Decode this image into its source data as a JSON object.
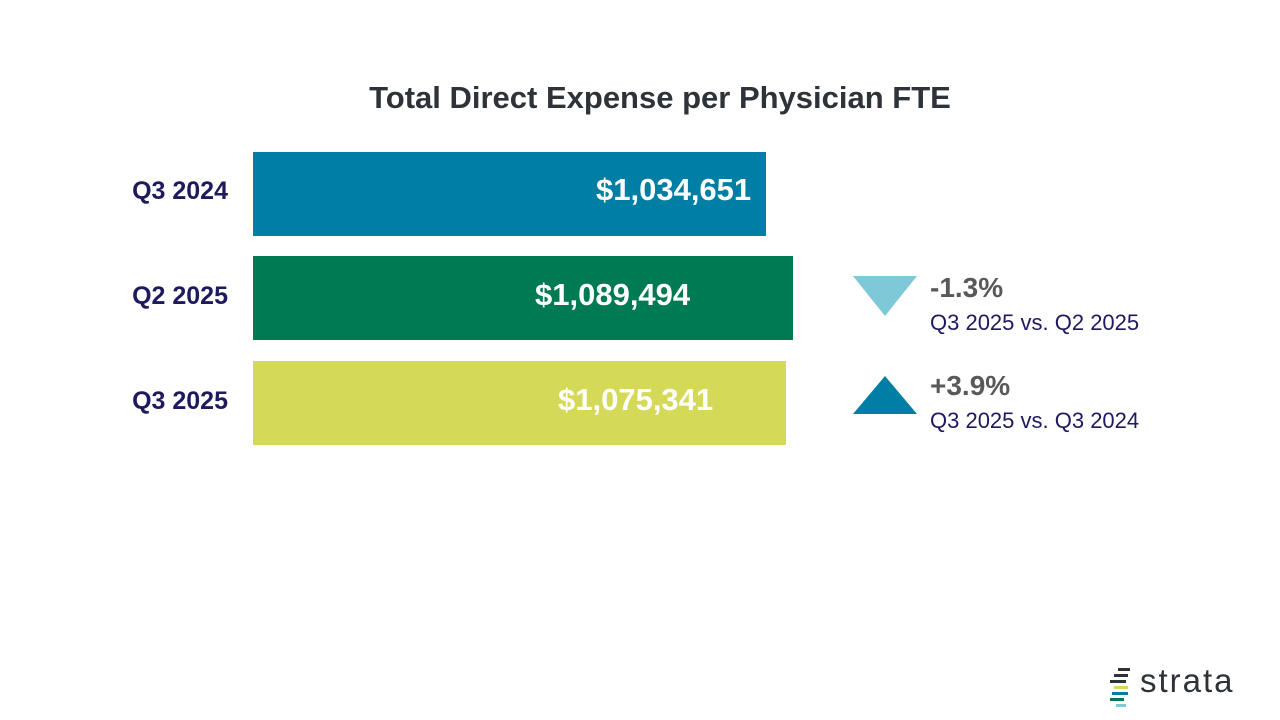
{
  "chart_data": {
    "type": "bar",
    "orientation": "horizontal",
    "title": "Total Direct Expense per Physician FTE",
    "categories": [
      "Q3 2024",
      "Q2 2025",
      "Q3 2025"
    ],
    "values": [
      1034651,
      1089494,
      1075341
    ],
    "value_labels": [
      "$1,034,651",
      "$1,089,494",
      "$1,075,341"
    ],
    "colors": [
      "#007ea3",
      "#007a52",
      "#d4d957"
    ],
    "xlabel": "",
    "ylabel": "",
    "grid": false
  },
  "changes": [
    {
      "direction": "down",
      "percent": "-1.3%",
      "description": "Q3 2025 vs. Q2 2025",
      "color": "#7ec8d8"
    },
    {
      "direction": "up",
      "percent": "+3.9%",
      "description": "Q3 2025 vs. Q3 2024",
      "color": "#007ea3"
    }
  ],
  "logo": {
    "text": "strata"
  }
}
